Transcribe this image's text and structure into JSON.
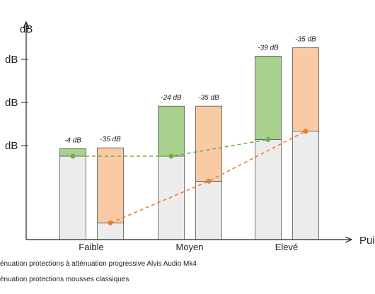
{
  "chart_data": {
    "type": "bar",
    "ylabel": "dB",
    "xlabel": "Pui",
    "y_tick_labels": [
      "dB",
      "dB",
      "dB"
    ],
    "categories": [
      "Faible",
      "Moyen",
      "Elevé"
    ],
    "series": [
      {
        "name": "énuation protections à atténuation progressive Alvis Audio Mk4",
        "base_values": [
          1.0,
          1.0,
          1.2
        ],
        "attenuation_values": [
          0.09,
          0.6,
          1.0
        ],
        "labels": [
          "-4 dB",
          "-24 dB",
          "-39 dB"
        ],
        "line_values": [
          1.0,
          1.0,
          1.2
        ]
      },
      {
        "name": "énuation protections mousses classiques",
        "base_values": [
          0.2,
          0.7,
          1.3
        ],
        "attenuation_values": [
          0.9,
          0.9,
          1.0
        ],
        "labels": [
          "-35 dB",
          "-35 dB",
          "-35 dB"
        ],
        "line_values": [
          0.2,
          0.7,
          1.3
        ]
      }
    ],
    "ylim": [
      0,
      2.2
    ],
    "colors": {
      "base_fill": "#ececec",
      "green_fill": "#a9d18e",
      "orange_fill": "#f8cba4",
      "green_line": "#70ad47",
      "orange_line": "#ed7d31",
      "bar_stroke": "#555555",
      "axis": "#222222"
    }
  }
}
